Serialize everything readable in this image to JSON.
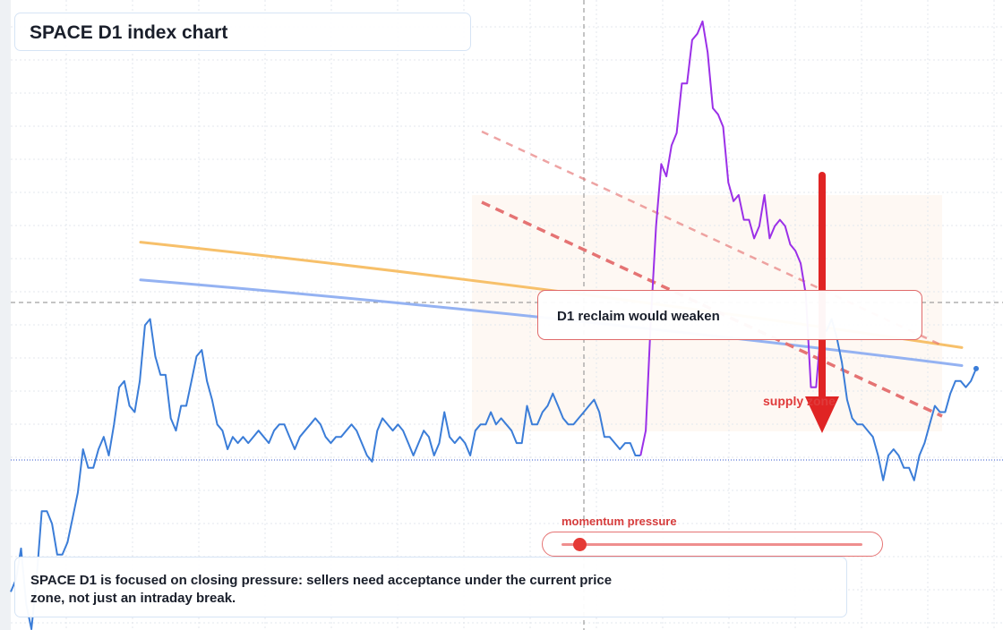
{
  "title": "SPACE D1 index chart",
  "callout": "D1 reclaim would weaken",
  "caption": "SPACE D1 is focused on closing pressure: sellers need acceptance under the current price zone, not just an intraday break.",
  "supply_label": "supply zone",
  "momentum": {
    "label": "momentum pressure",
    "level": 0.06
  },
  "colors": {
    "price_line": "#3b7dd8",
    "price_highlight": "#9b30e8",
    "ma_fast": "#f7c06a",
    "ma_slow": "#94b2f2",
    "resistance": "#e57373",
    "arrow": "#e02424"
  },
  "chart_data": {
    "type": "line",
    "title": "SPACE D1 index chart",
    "xlabel": "",
    "ylabel": "",
    "grid": true,
    "ylim": [
      0,
      100
    ],
    "series": [
      {
        "values": [
          6,
          8,
          13,
          4,
          0,
          8,
          19,
          19,
          17,
          12,
          12,
          14,
          18,
          22,
          29,
          26,
          26,
          29,
          31,
          28,
          33,
          39,
          40,
          36,
          35,
          40,
          49,
          50,
          44,
          41,
          41,
          34,
          32,
          36,
          36,
          40,
          44,
          45,
          40,
          37,
          33,
          32,
          29,
          31,
          30,
          31,
          30,
          31,
          32,
          31,
          30,
          32,
          33,
          33,
          31,
          29,
          31,
          32,
          33,
          34,
          33,
          31,
          30,
          31,
          31,
          32,
          33,
          32,
          30,
          28,
          27,
          32,
          34,
          33,
          32,
          33,
          32,
          30,
          28,
          30,
          32,
          31,
          28,
          30,
          35,
          31,
          30,
          31,
          30,
          28,
          32,
          33,
          33,
          35,
          33,
          34,
          33,
          32,
          30,
          30,
          36,
          33,
          33,
          35,
          36,
          38,
          36,
          34,
          33,
          33,
          34,
          35,
          36,
          37,
          35,
          31,
          31,
          30,
          29,
          30,
          30,
          28,
          28,
          32,
          50,
          65,
          75,
          73,
          78,
          80,
          88,
          88,
          95,
          96,
          98,
          93,
          84,
          83,
          81,
          72,
          69,
          70,
          66,
          66,
          63,
          65,
          70,
          63,
          65,
          66,
          65,
          62,
          61,
          59,
          54,
          39,
          39,
          49,
          48,
          50,
          47,
          43,
          37,
          34,
          33,
          33,
          32,
          31,
          28,
          24,
          28,
          29,
          28,
          26,
          26,
          24,
          28,
          30,
          33,
          36,
          35,
          35,
          38,
          40,
          40,
          39,
          40,
          42
        ],
        "highlight_range": [
          122,
          158
        ]
      },
      {
        "type": "line",
        "values": [
          62.4,
          45.4
        ]
      },
      {
        "type": "line",
        "values": [
          56.3,
          42.5
        ]
      }
    ],
    "annotations": [
      "D1 reclaim would weaken",
      "supply zone",
      "momentum pressure"
    ]
  }
}
